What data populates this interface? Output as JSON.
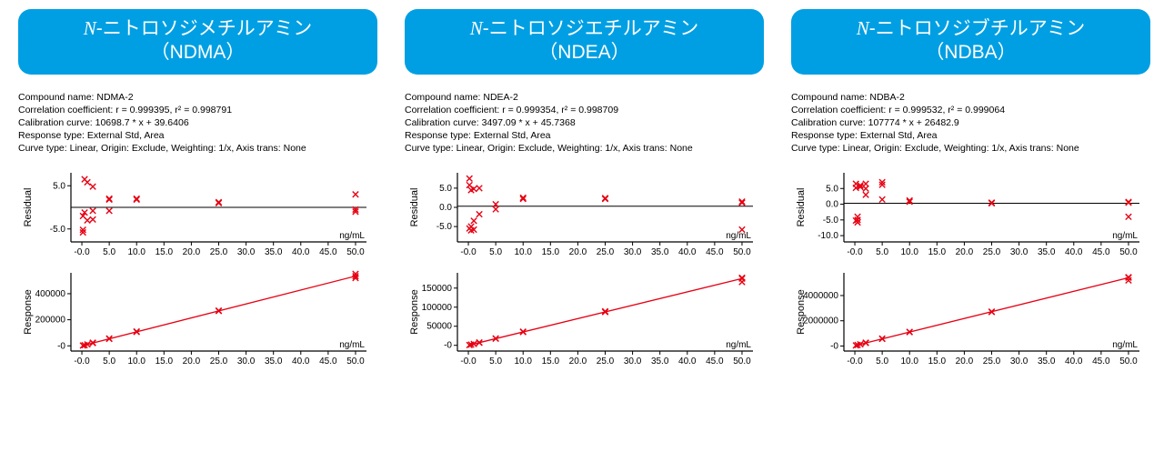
{
  "layout": {
    "background_color": "#ffffff",
    "panel_count": 3
  },
  "style": {
    "title_bg": "#009fe3",
    "title_fg": "#ffffff",
    "title_fontsize": 21,
    "meta_fontsize": 10.5,
    "axis_color": "#000000",
    "tick_color": "#000000",
    "tick_fontsize": 10,
    "marker_color": "#e60012",
    "marker_stroke_width": 1.4,
    "marker_size": 3.2,
    "line_color": "#e60012",
    "zero_line_color": "#000000",
    "unit_label": "ng/mL"
  },
  "panels": [
    {
      "title_line1_prefix": "N",
      "title_line1_rest": "-ニトロソジメチルアミン",
      "title_line2": "（NDMA）",
      "meta": {
        "compound": "Compound name: NDMA-2",
        "corr": "Correlation coefficient: r = 0.999395, r² = 0.998791",
        "curve": "Calibration curve: 10698.7 * x + 39.6406",
        "resp": "Response type: External Std, Area",
        "ctype": "Curve type: Linear, Origin: Exclude, Weighting: 1/x, Axis trans: None"
      },
      "residual_chart": {
        "type": "scatter",
        "ylabel": "Residual",
        "xlim": [
          -2,
          52
        ],
        "ylim": [
          -8,
          8
        ],
        "yticks": [
          -5.0,
          5.0
        ],
        "ytick_labels": [
          "-5.0",
          "5.0"
        ],
        "xticks": [
          0,
          5,
          10,
          15,
          20,
          25,
          30,
          35,
          40,
          45,
          50
        ],
        "xtick_labels": [
          "-0.0",
          "5.0",
          "10.0",
          "15.0",
          "20.0",
          "25.0",
          "30.0",
          "35.0",
          "40.0",
          "45.0",
          "50.0"
        ],
        "zero_line_y": 0,
        "points": [
          {
            "x": 0.2,
            "y": -5.2
          },
          {
            "x": 0.2,
            "y": -5.8
          },
          {
            "x": 0.2,
            "y": -2.0
          },
          {
            "x": 0.5,
            "y": 6.5
          },
          {
            "x": 0.5,
            "y": -1.2
          },
          {
            "x": 1.0,
            "y": -3.0
          },
          {
            "x": 1.0,
            "y": 5.8
          },
          {
            "x": 2.0,
            "y": 4.8
          },
          {
            "x": 2.0,
            "y": -2.8
          },
          {
            "x": 2.0,
            "y": -0.8
          },
          {
            "x": 5.0,
            "y": 2.0
          },
          {
            "x": 5.0,
            "y": -0.8
          },
          {
            "x": 5.0,
            "y": 1.8
          },
          {
            "x": 10.0,
            "y": 2.0
          },
          {
            "x": 10.0,
            "y": 1.8
          },
          {
            "x": 25.0,
            "y": 1.2
          },
          {
            "x": 25.0,
            "y": 1.0
          },
          {
            "x": 50.0,
            "y": 3.0
          },
          {
            "x": 50.0,
            "y": -0.5
          },
          {
            "x": 50.0,
            "y": -1.0
          }
        ]
      },
      "response_chart": {
        "type": "line+scatter",
        "ylabel": "Response",
        "xlim": [
          -2,
          52
        ],
        "ylim": [
          -40000,
          560000
        ],
        "yticks": [
          0,
          200000,
          400000
        ],
        "ytick_labels": [
          "-0",
          "200000",
          "400000"
        ],
        "xticks": [
          0,
          5,
          10,
          15,
          20,
          25,
          30,
          35,
          40,
          45,
          50
        ],
        "xtick_labels": [
          "-0.0",
          "5.0",
          "10.0",
          "15.0",
          "20.0",
          "25.0",
          "30.0",
          "35.0",
          "40.0",
          "45.0",
          "50.0"
        ],
        "line_from": {
          "x": 0,
          "y": 40
        },
        "line_to": {
          "x": 50,
          "y": 535000
        },
        "points": [
          {
            "x": 0.2,
            "y": 2000
          },
          {
            "x": 0.5,
            "y": 5000
          },
          {
            "x": 1.0,
            "y": 10700
          },
          {
            "x": 2.0,
            "y": 21400
          },
          {
            "x": 2.0,
            "y": 24000
          },
          {
            "x": 5.0,
            "y": 53500
          },
          {
            "x": 5.0,
            "y": 56000
          },
          {
            "x": 10.0,
            "y": 107000
          },
          {
            "x": 10.0,
            "y": 110000
          },
          {
            "x": 25.0,
            "y": 267500
          },
          {
            "x": 25.0,
            "y": 270000
          },
          {
            "x": 50.0,
            "y": 552000
          },
          {
            "x": 50.0,
            "y": 520000
          },
          {
            "x": 50.0,
            "y": 534000
          }
        ]
      }
    },
    {
      "title_line1_prefix": "N",
      "title_line1_rest": "-ニトロソジエチルアミン",
      "title_line2": "（NDEA）",
      "meta": {
        "compound": "Compound name: NDEA-2",
        "corr": "Correlation coefficient: r = 0.999354, r² = 0.998709",
        "curve": "Calibration curve: 3497.09 * x + 45.7368",
        "resp": "Response type: External Std, Area",
        "ctype": "Curve type: Linear, Origin: Exclude, Weighting: 1/x, Axis trans: None"
      },
      "residual_chart": {
        "type": "scatter",
        "ylabel": "Residual",
        "xlim": [
          -2,
          52
        ],
        "ylim": [
          -9,
          9
        ],
        "yticks": [
          -5.0,
          0.0,
          5.0
        ],
        "ytick_labels": [
          "-5.0",
          "0.0",
          "5.0"
        ],
        "xticks": [
          0,
          5,
          10,
          15,
          20,
          25,
          30,
          35,
          40,
          45,
          50
        ],
        "xtick_labels": [
          "-0.0",
          "5.0",
          "10.0",
          "15.0",
          "20.0",
          "25.0",
          "30.0",
          "35.0",
          "40.0",
          "45.0",
          "50.0"
        ],
        "zero_line_y": 0.3,
        "points": [
          {
            "x": 0.2,
            "y": -5.5
          },
          {
            "x": 0.2,
            "y": 5.8
          },
          {
            "x": 0.2,
            "y": 7.5
          },
          {
            "x": 0.5,
            "y": -6.0
          },
          {
            "x": 0.5,
            "y": -5.0
          },
          {
            "x": 0.5,
            "y": 4.5
          },
          {
            "x": 1.0,
            "y": -5.8
          },
          {
            "x": 1.0,
            "y": -3.5
          },
          {
            "x": 1.0,
            "y": 4.8
          },
          {
            "x": 2.0,
            "y": -1.8
          },
          {
            "x": 2.0,
            "y": 5.0
          },
          {
            "x": 5.0,
            "y": 0.8
          },
          {
            "x": 5.0,
            "y": -0.5
          },
          {
            "x": 10.0,
            "y": 2.5
          },
          {
            "x": 10.0,
            "y": 2.2
          },
          {
            "x": 25.0,
            "y": 2.2
          },
          {
            "x": 25.0,
            "y": 2.4
          },
          {
            "x": 50.0,
            "y": -5.8
          },
          {
            "x": 50.0,
            "y": 1.5
          },
          {
            "x": 50.0,
            "y": 1.2
          }
        ]
      },
      "response_chart": {
        "type": "line+scatter",
        "ylabel": "Response",
        "xlim": [
          -2,
          52
        ],
        "ylim": [
          -15000,
          190000
        ],
        "yticks": [
          0,
          50000,
          100000,
          150000
        ],
        "ytick_labels": [
          "-0",
          "50000",
          "100000",
          "150000"
        ],
        "xticks": [
          0,
          5,
          10,
          15,
          20,
          25,
          30,
          35,
          40,
          45,
          50
        ],
        "xtick_labels": [
          "-0.0",
          "5.0",
          "10.0",
          "15.0",
          "20.0",
          "25.0",
          "30.0",
          "35.0",
          "40.0",
          "45.0",
          "50.0"
        ],
        "line_from": {
          "x": 0,
          "y": 46
        },
        "line_to": {
          "x": 50,
          "y": 175000
        },
        "points": [
          {
            "x": 0.2,
            "y": 700
          },
          {
            "x": 0.5,
            "y": 1800
          },
          {
            "x": 1.0,
            "y": 3500
          },
          {
            "x": 2.0,
            "y": 7000
          },
          {
            "x": 2.0,
            "y": 7400
          },
          {
            "x": 5.0,
            "y": 17500
          },
          {
            "x": 5.0,
            "y": 18000
          },
          {
            "x": 10.0,
            "y": 35000
          },
          {
            "x": 10.0,
            "y": 35800
          },
          {
            "x": 25.0,
            "y": 87400
          },
          {
            "x": 25.0,
            "y": 89000
          },
          {
            "x": 50.0,
            "y": 166000
          },
          {
            "x": 50.0,
            "y": 177000
          },
          {
            "x": 50.0,
            "y": 175000
          }
        ]
      }
    },
    {
      "title_line1_prefix": "N",
      "title_line1_rest": "-ニトロソジブチルアミン",
      "title_line2": "（NDBA）",
      "meta": {
        "compound": "Compound name: NDBA-2",
        "corr": "Correlation coefficient: r = 0.999532, r² = 0.999064",
        "curve": "Calibration curve: 107774 * x + 26482.9",
        "resp": "Response type: External Std, Area",
        "ctype": "Curve type: Linear, Origin: Exclude, Weighting: 1/x, Axis trans: None"
      },
      "residual_chart": {
        "type": "scatter",
        "ylabel": "Residual",
        "xlim": [
          -2,
          52
        ],
        "ylim": [
          -12,
          10
        ],
        "yticks": [
          -10.0,
          -5.0,
          0.0,
          5.0
        ],
        "ytick_labels": [
          "-10.0",
          "-5.0",
          "0.0",
          "5.0"
        ],
        "xticks": [
          0,
          5,
          10,
          15,
          20,
          25,
          30,
          35,
          40,
          45,
          50
        ],
        "xtick_labels": [
          "-0.0",
          "5.0",
          "10.0",
          "15.0",
          "20.0",
          "25.0",
          "30.0",
          "35.0",
          "40.0",
          "45.0",
          "50.0"
        ],
        "zero_line_y": 0.3,
        "points": [
          {
            "x": 0.2,
            "y": -5.2
          },
          {
            "x": 0.2,
            "y": 6.5
          },
          {
            "x": 0.2,
            "y": 5.2
          },
          {
            "x": 0.5,
            "y": -5.8
          },
          {
            "x": 0.5,
            "y": -5.0
          },
          {
            "x": 0.5,
            "y": -4.0
          },
          {
            "x": 1.0,
            "y": 5.5
          },
          {
            "x": 1.0,
            "y": 6.0
          },
          {
            "x": 2.0,
            "y": 6.5
          },
          {
            "x": 2.0,
            "y": 3.0
          },
          {
            "x": 2.0,
            "y": 5.0
          },
          {
            "x": 5.0,
            "y": 7.0
          },
          {
            "x": 5.0,
            "y": 6.2
          },
          {
            "x": 5.0,
            "y": 1.5
          },
          {
            "x": 10.0,
            "y": 0.8
          },
          {
            "x": 10.0,
            "y": 1.2
          },
          {
            "x": 25.0,
            "y": 0.5
          },
          {
            "x": 25.0,
            "y": 0.3
          },
          {
            "x": 50.0,
            "y": -4.0
          },
          {
            "x": 50.0,
            "y": 0.5
          },
          {
            "x": 50.0,
            "y": 0.7
          }
        ]
      },
      "response_chart": {
        "type": "line+scatter",
        "ylabel": "Response",
        "xlim": [
          -2,
          52
        ],
        "ylim": [
          -400000,
          5800000
        ],
        "yticks": [
          0,
          2000000,
          4000000
        ],
        "ytick_labels": [
          "-0",
          "2000000",
          "4000000"
        ],
        "xticks": [
          0,
          5,
          10,
          15,
          20,
          25,
          30,
          35,
          40,
          45,
          50
        ],
        "xtick_labels": [
          "-0.0",
          "5.0",
          "10.0",
          "15.0",
          "20.0",
          "25.0",
          "30.0",
          "35.0",
          "40.0",
          "45.0",
          "50.0"
        ],
        "line_from": {
          "x": 0,
          "y": 26483
        },
        "line_to": {
          "x": 50,
          "y": 5415000
        },
        "points": [
          {
            "x": 0.2,
            "y": 48000
          },
          {
            "x": 0.5,
            "y": 80000
          },
          {
            "x": 1.0,
            "y": 134000
          },
          {
            "x": 2.0,
            "y": 242000
          },
          {
            "x": 2.0,
            "y": 260000
          },
          {
            "x": 5.0,
            "y": 565000
          },
          {
            "x": 5.0,
            "y": 590000
          },
          {
            "x": 10.0,
            "y": 1104000
          },
          {
            "x": 10.0,
            "y": 1120000
          },
          {
            "x": 25.0,
            "y": 2721000
          },
          {
            "x": 25.0,
            "y": 2700000
          },
          {
            "x": 50.0,
            "y": 5200000
          },
          {
            "x": 50.0,
            "y": 5450000
          },
          {
            "x": 50.0,
            "y": 5420000
          }
        ]
      }
    }
  ]
}
